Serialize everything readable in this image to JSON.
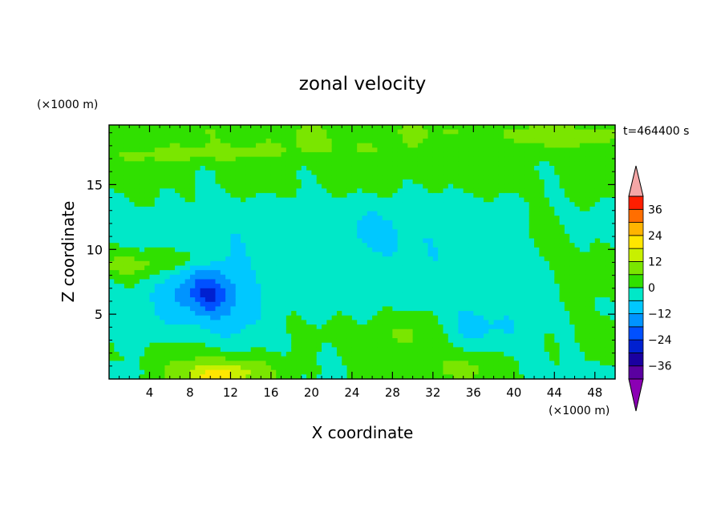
{
  "chart_data": {
    "type": "heatmap",
    "title": "zonal velocity",
    "xlabel": "X coordinate",
    "ylabel": "Z coordinate",
    "x_unit": "(×1000 m)",
    "y_unit": "(×1000 m)",
    "time_label": "t=464400 s",
    "xlim": [
      0,
      50
    ],
    "ylim": [
      0,
      19.6
    ],
    "x_ticks": [
      "4",
      "8",
      "12",
      "16",
      "20",
      "24",
      "28",
      "32",
      "36",
      "40",
      "44",
      "48"
    ],
    "x_tick_values": [
      4,
      8,
      12,
      16,
      20,
      24,
      28,
      32,
      36,
      40,
      44,
      48
    ],
    "y_ticks": [
      "5",
      "10",
      "15"
    ],
    "y_tick_values": [
      5,
      10,
      15
    ],
    "colorbar": {
      "labels": [
        "36",
        "24",
        "12",
        "0",
        "−12",
        "−24",
        "−36"
      ],
      "label_values": [
        36,
        24,
        12,
        0,
        -12,
        -24,
        -36
      ],
      "levels": [
        -42,
        -36,
        -30,
        -24,
        -18,
        -12,
        -6,
        0,
        6,
        12,
        18,
        24,
        30,
        36,
        42
      ],
      "colors": [
        "#8b00b4",
        "#5a00a0",
        "#1a00a0",
        "#0020d0",
        "#0050ff",
        "#0094ff",
        "#00c8ff",
        "#00e8c8",
        "#30e000",
        "#7ae600",
        "#c8f000",
        "#ffe600",
        "#ffb400",
        "#ff6e00",
        "#ff1e00",
        "#f4a6a6"
      ],
      "under_color": "#8b00b4",
      "over_color": "#f4a6a6"
    },
    "features": [
      {
        "x": 25,
        "z": 10,
        "sx": 18,
        "sz": 3.5,
        "value": -4
      },
      {
        "x": 30,
        "z": 11.5,
        "sx": 6,
        "sz": 1.8,
        "value": -3
      },
      {
        "x": 9.5,
        "z": 6.5,
        "sx": 3.2,
        "sz": 1.8,
        "value": -12
      },
      {
        "x": 10,
        "z": 6.5,
        "sx": 1.0,
        "sz": 0.8,
        "value": -8
      },
      {
        "x": 11,
        "z": 6,
        "sx": 5.5,
        "sz": 3.5,
        "value": -4
      },
      {
        "x": 2.5,
        "z": 8.8,
        "sx": 3.5,
        "sz": 0.8,
        "value": 10
      },
      {
        "x": 7.8,
        "z": 9.3,
        "sx": 2.2,
        "sz": 0.6,
        "value": 7
      },
      {
        "x": 11,
        "z": 0.6,
        "sx": 4,
        "sz": 0.9,
        "value": 14
      },
      {
        "x": 10,
        "z": 0.2,
        "sx": 2,
        "sz": 0.5,
        "value": 10
      },
      {
        "x": 7,
        "z": 2.3,
        "sx": 2,
        "sz": 0.9,
        "value": 4
      },
      {
        "x": 34,
        "z": 0.8,
        "sx": 3,
        "sz": 0.9,
        "value": 8
      },
      {
        "x": 20,
        "z": 17.8,
        "sx": 14,
        "sz": 0.7,
        "value": 6
      },
      {
        "x": 6,
        "z": 17.2,
        "sx": 6,
        "sz": 0.5,
        "value": 5
      },
      {
        "x": 30,
        "z": 19.2,
        "sx": 25,
        "sz": 0.6,
        "value": 5
      },
      {
        "x": 46,
        "z": 18.5,
        "sx": 4,
        "sz": 0.8,
        "value": 6
      },
      {
        "x": 27,
        "z": 15.3,
        "sx": 20,
        "sz": 1.2,
        "value": 3
      },
      {
        "x": 43,
        "z": 9,
        "sx": 5,
        "sz": 2.5,
        "value": 4
      },
      {
        "x": 17,
        "z": 7,
        "sx": 2,
        "sz": 3,
        "value": 3
      },
      {
        "x": 26,
        "z": 3.5,
        "sx": 3,
        "sz": 1.2,
        "value": 4
      },
      {
        "x": 30,
        "z": 3.5,
        "sx": 2,
        "sz": 1,
        "value": 5
      },
      {
        "x": 40,
        "z": 4,
        "sx": 2.5,
        "sz": 1.4,
        "value": -5
      },
      {
        "x": 35,
        "z": 4.3,
        "sx": 2,
        "sz": 1.3,
        "value": -5
      },
      {
        "x": 48,
        "z": 0.4,
        "sx": 1.5,
        "sz": 0.5,
        "value": -7
      },
      {
        "x": 1,
        "z": 0.4,
        "sx": 1.5,
        "sz": 0.5,
        "value": -7
      },
      {
        "x": 38.5,
        "z": 8.4,
        "sx": 2.5,
        "sz": 1,
        "value": -4
      },
      {
        "x": 16,
        "z": 11.3,
        "sx": 1,
        "sz": 0.6,
        "value": 3
      },
      {
        "x": 48.5,
        "z": 3.5,
        "sx": 1.5,
        "sz": 1,
        "value": 5
      },
      {
        "x": 3,
        "z": 12.5,
        "sx": 3,
        "sz": 1.5,
        "value": 1
      }
    ]
  }
}
